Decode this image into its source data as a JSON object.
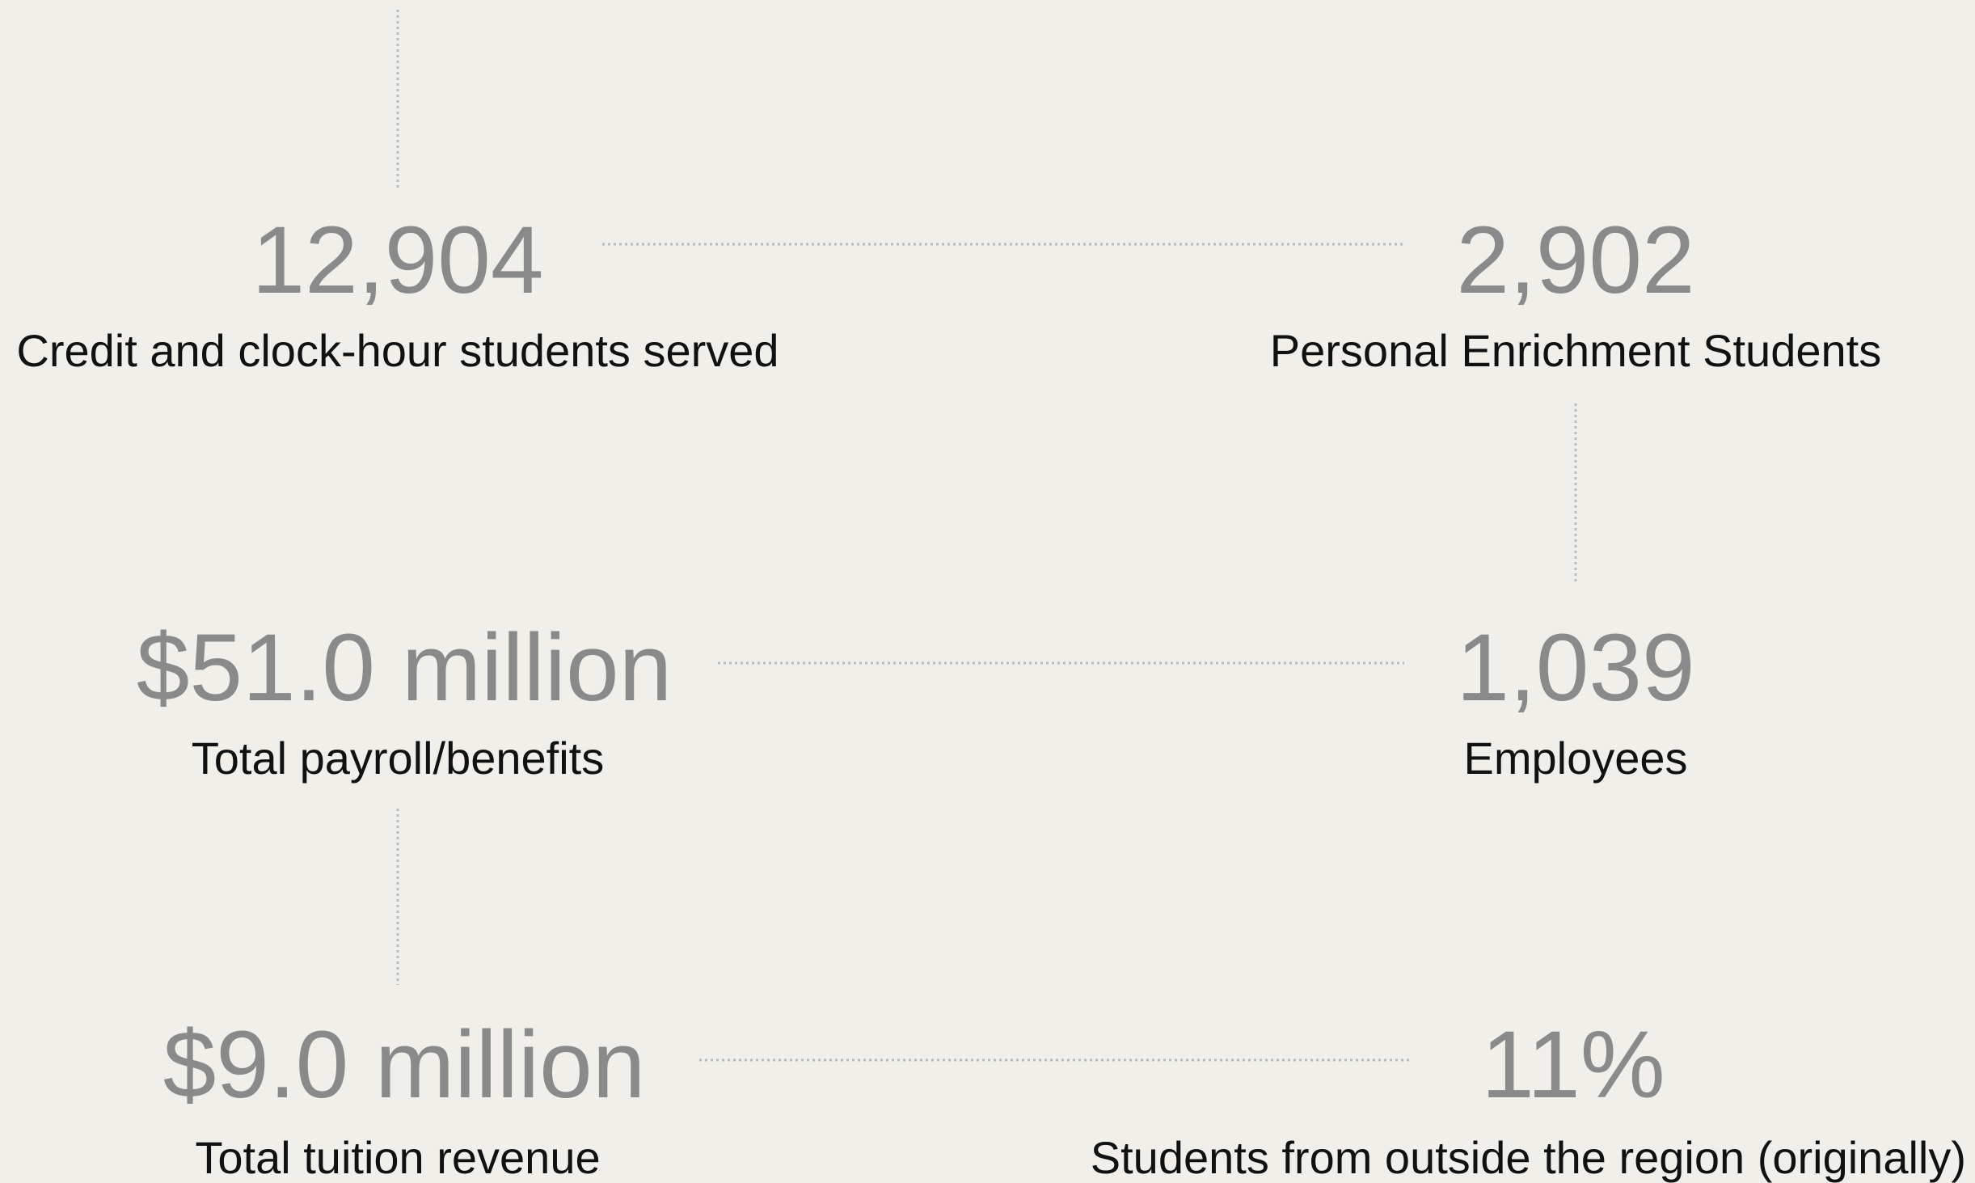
{
  "stats": [
    {
      "value": "12,904",
      "label": "Credit and clock-hour students served"
    },
    {
      "value": "2,902",
      "label": "Personal Enrichment Students"
    },
    {
      "value": "$51.0 million",
      "label": "Total payroll/benefits"
    },
    {
      "value": "1,039",
      "label": "Employees"
    },
    {
      "value": "$9.0 million",
      "label": "Total tuition revenue"
    },
    {
      "value": "11%",
      "label": "Students from outside the region (originally)"
    }
  ]
}
